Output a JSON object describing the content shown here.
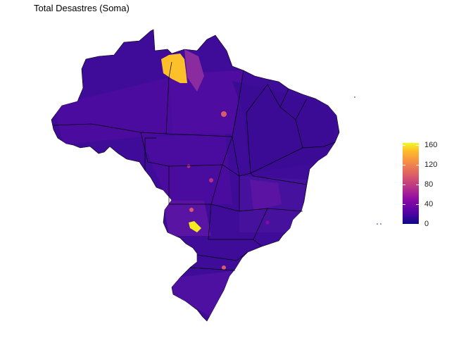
{
  "title": "Total Desastres (Soma)",
  "legend": {
    "ticks": [
      "160",
      "120",
      "80",
      "40",
      "0"
    ],
    "values": [
      160,
      120,
      80,
      40,
      0
    ],
    "min": 0,
    "max": 165,
    "palette": [
      "#0D0887",
      "#5402A3",
      "#8B0AA5",
      "#B93289",
      "#DB5C68",
      "#F48849",
      "#FEBC2A",
      "#F0F921"
    ]
  },
  "map": {
    "country": "Brazil",
    "base_color": "#3F0C9A",
    "hotspot_color": "#FCC02A",
    "border_color": "#000000"
  }
}
